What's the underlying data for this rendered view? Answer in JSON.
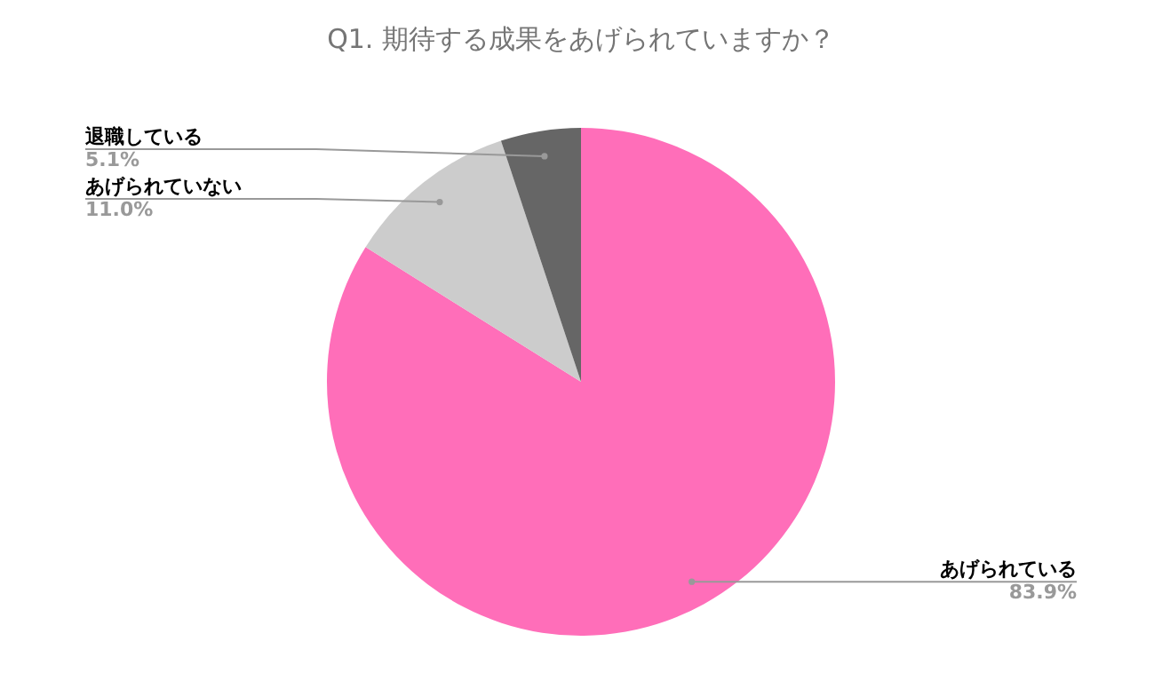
{
  "chart_data": {
    "type": "pie",
    "title": "Q1. 期待する成果をあげられていますか？",
    "categories": [
      "あげられている",
      "あげられていない",
      "退職している"
    ],
    "values": [
      83.9,
      11.0,
      5.1
    ],
    "colors": [
      "#ff6eb9",
      "#cccccc",
      "#666666"
    ],
    "value_labels": [
      "83.9%",
      "11.0%",
      "5.1%"
    ],
    "legend": false
  }
}
